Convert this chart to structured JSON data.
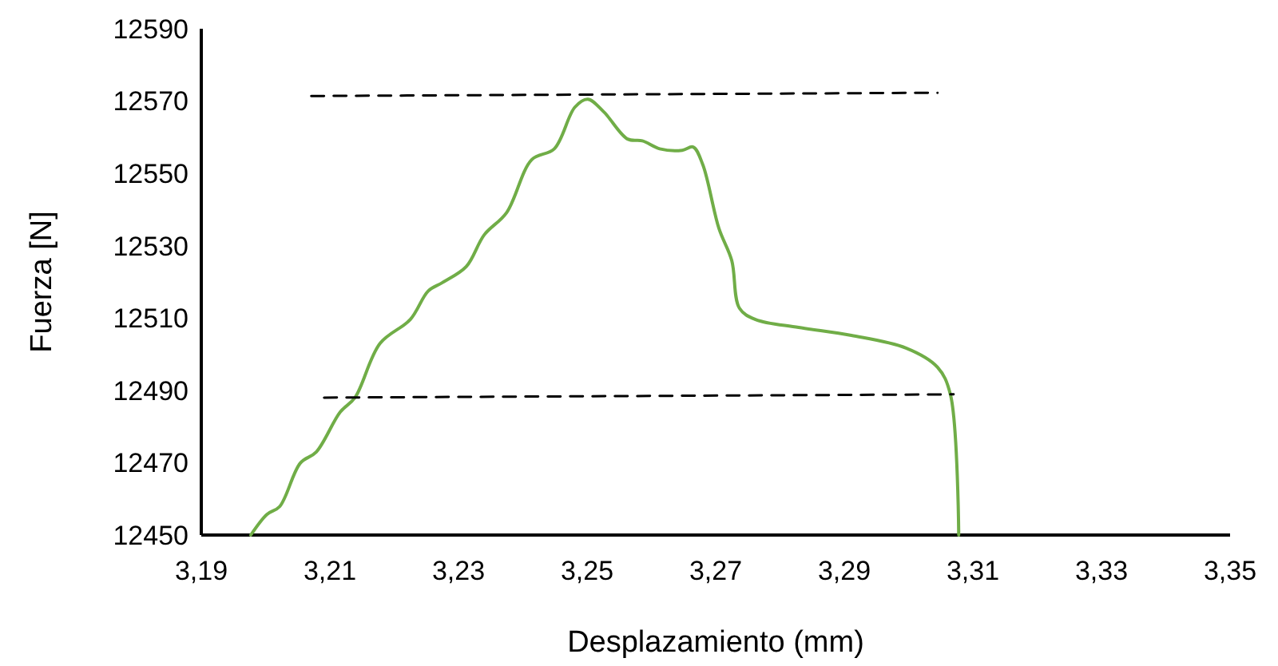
{
  "chart_data": {
    "type": "line",
    "xlabel": "Desplazamiento (mm)",
    "ylabel": "Fuerza [N]",
    "xlim": [
      3.19,
      3.35
    ],
    "ylim": [
      12450,
      12590
    ],
    "xticks": [
      {
        "value": 3.19,
        "label": "3,19"
      },
      {
        "value": 3.21,
        "label": "3,21"
      },
      {
        "value": 3.23,
        "label": "3,23"
      },
      {
        "value": 3.25,
        "label": "3,25"
      },
      {
        "value": 3.27,
        "label": "3,27"
      },
      {
        "value": 3.29,
        "label": "3,29"
      },
      {
        "value": 3.31,
        "label": "3,31"
      },
      {
        "value": 3.33,
        "label": "3,33"
      },
      {
        "value": 3.35,
        "label": "3,35"
      }
    ],
    "yticks": [
      12450,
      12470,
      12490,
      12510,
      12530,
      12550,
      12570,
      12590
    ],
    "grid": false,
    "marker": "none",
    "series": [
      {
        "color": "#70ad47",
        "line_style": "solid",
        "x": [
          3.1977,
          3.2002,
          3.2022,
          3.2054,
          3.2079,
          3.2116,
          3.2139,
          3.2178,
          3.2225,
          3.2253,
          3.2275,
          3.2312,
          3.234,
          3.2375,
          3.2414,
          3.2449,
          3.2481,
          3.2501,
          3.2526,
          3.2563,
          3.2586,
          3.2613,
          3.2648,
          3.2665,
          3.268,
          3.2705,
          3.2725,
          3.2737,
          3.2762,
          3.2829,
          3.2911,
          3.2996,
          3.3045,
          3.3065,
          3.3078
        ],
        "values": [
          12450,
          12455.7,
          12457.9,
          12469.9,
          12473,
          12484,
          12488,
          12503,
          12509.6,
          12517.5,
          12519.8,
          12524.2,
          12533,
          12539.2,
          12553.8,
          12556.8,
          12568.3,
          12570.5,
          12567,
          12559.5,
          12559,
          12556.8,
          12556.4,
          12557.3,
          12552.4,
          12534.8,
          12525.9,
          12512.7,
          12509.6,
          12507.4,
          12505.2,
          12501.7,
          12496.4,
          12488.9,
          12450
        ]
      },
      {
        "color": "#000000",
        "line_style": "dashed",
        "x": [
          3.2071,
          3.3045
        ],
        "values": [
          12571.4,
          12572.3
        ]
      },
      {
        "color": "#000000",
        "line_style": "dashed",
        "x": [
          3.2091,
          3.307
        ],
        "values": [
          12488,
          12488.9
        ]
      }
    ]
  }
}
